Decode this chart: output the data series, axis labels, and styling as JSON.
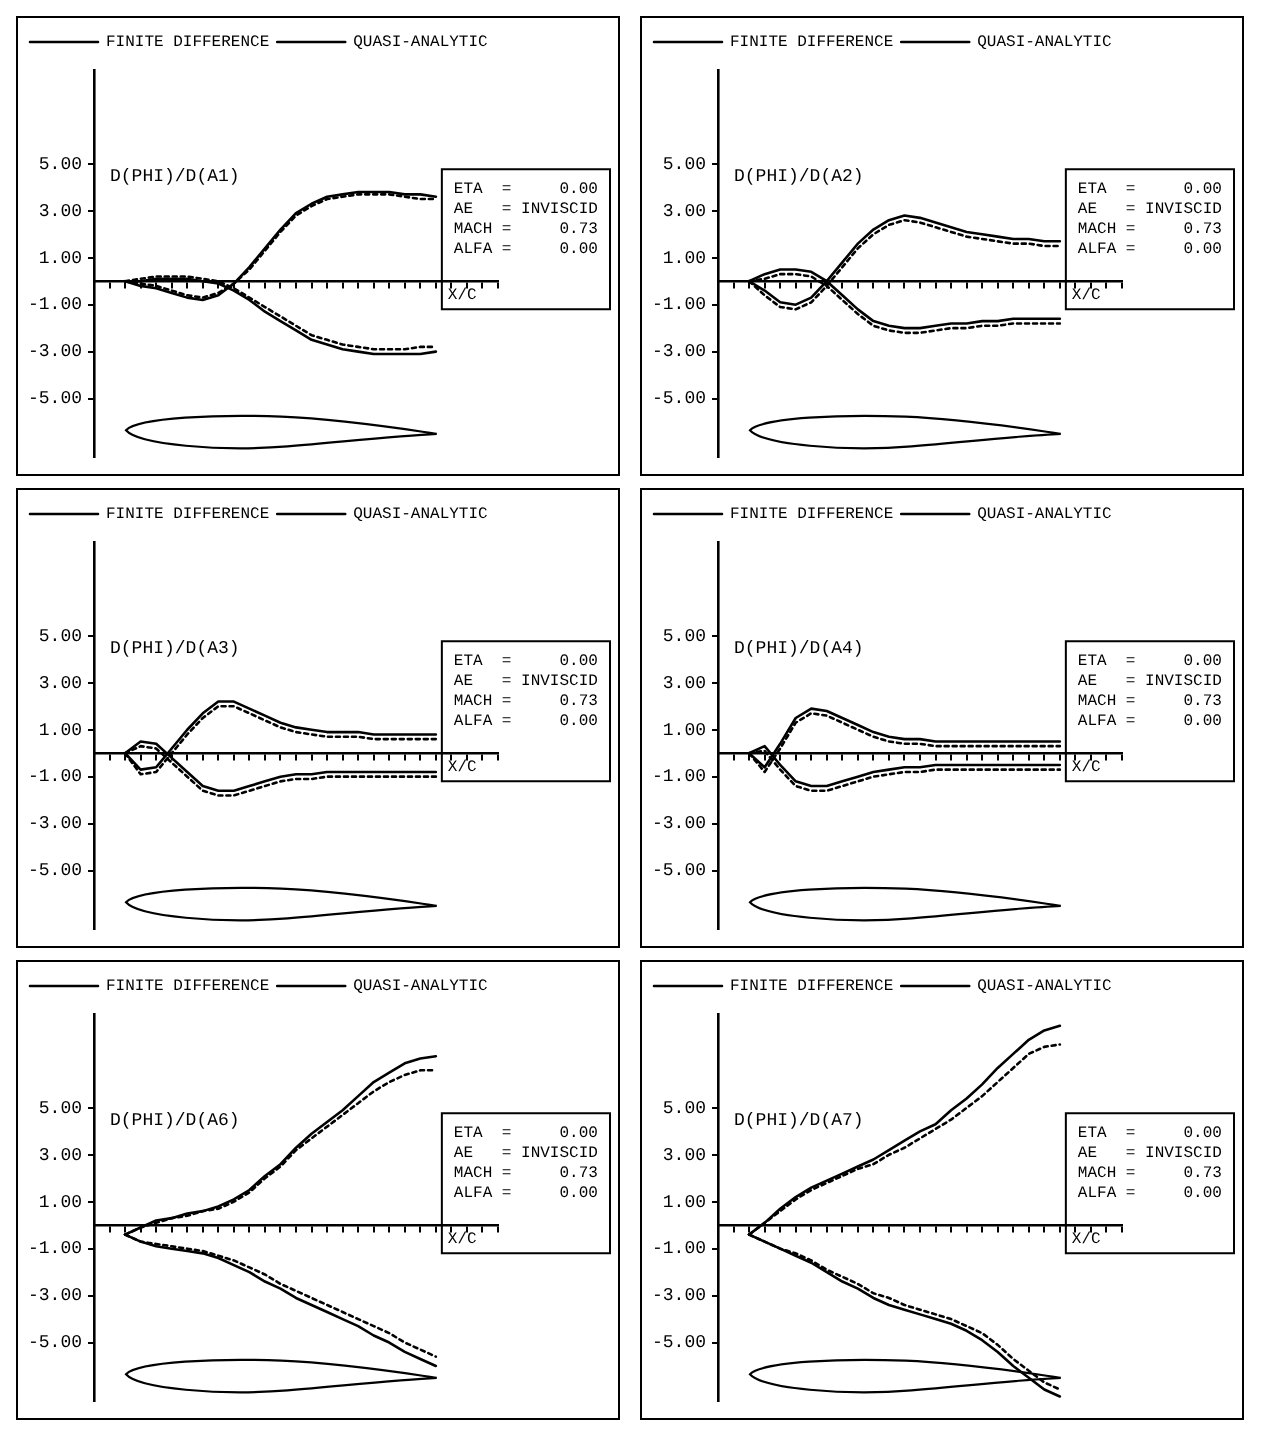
{
  "chart_data": [
    {
      "type": "line",
      "ylabel": "D(PHI)/D(A1)",
      "xlabel": "X/C",
      "legend": "top left",
      "grid": false,
      "marker": "none",
      "tick_labels": "y",
      "ylim": [
        -7.5,
        9
      ],
      "yticks": [
        {
          "value": 5,
          "label": "5.00"
        },
        {
          "value": 3,
          "label": "3.00"
        },
        {
          "value": 1,
          "label": "1.00"
        },
        {
          "value": -1,
          "label": "-1.00"
        },
        {
          "value": -3,
          "label": "-3.00"
        },
        {
          "value": -5,
          "label": "-5.00"
        }
      ],
      "annotations": [
        "ETA  =     0.00",
        "AE   = INVISCID",
        "MACH =     0.73",
        "ALFA =     0.00"
      ],
      "categories": [
        null,
        null,
        null,
        null,
        null,
        null,
        null,
        null,
        null,
        null,
        null,
        null,
        null,
        null,
        null,
        null,
        null,
        null,
        null,
        null,
        null,
        null,
        null,
        null,
        null,
        null,
        null
      ],
      "series": [
        {
          "name": "FINITE DIFFERENCE",
          "color": "#000000",
          "line_style": "solid",
          "values": [
            null,
            null,
            0,
            -0.2,
            -0.3,
            -0.5,
            -0.7,
            -0.8,
            -0.6,
            -0.1,
            0.6,
            1.4,
            2.2,
            2.9,
            3.3,
            3.6,
            3.7,
            3.8,
            3.8,
            3.8,
            3.7,
            3.7,
            3.6,
            null,
            null,
            null,
            null
          ]
        },
        {
          "name": "QUASI-ANALYTIC",
          "color": "#000000",
          "line_style": "dotted",
          "values": [
            null,
            null,
            0,
            -0.1,
            -0.2,
            -0.4,
            -0.6,
            -0.7,
            -0.5,
            -0.1,
            0.5,
            1.3,
            2.1,
            2.8,
            3.2,
            3.5,
            3.6,
            3.7,
            3.7,
            3.7,
            3.6,
            3.5,
            3.5,
            null,
            null,
            null,
            null
          ]
        },
        {
          "color": "#000000",
          "line_style": "solid",
          "values": [
            null,
            null,
            0,
            0,
            0.1,
            0.1,
            0.1,
            0,
            -0.1,
            -0.4,
            -0.8,
            -1.3,
            -1.7,
            -2.1,
            -2.5,
            -2.7,
            -2.9,
            -3,
            -3.1,
            -3.1,
            -3.1,
            -3.1,
            -3,
            null,
            null,
            null,
            null
          ]
        },
        {
          "color": "#000000",
          "line_style": "dotted",
          "values": [
            null,
            null,
            0,
            0.1,
            0.2,
            0.2,
            0.2,
            0.1,
            0,
            -0.3,
            -0.7,
            -1.1,
            -1.5,
            -1.9,
            -2.3,
            -2.5,
            -2.7,
            -2.8,
            -2.9,
            -2.9,
            -2.9,
            -2.8,
            -2.8,
            null,
            null,
            null,
            null
          ]
        }
      ]
    },
    {
      "type": "line",
      "ylabel": "D(PHI)/D(A2)",
      "xlabel": "X/C",
      "legend": "top left",
      "grid": false,
      "marker": "none",
      "tick_labels": "y",
      "ylim": [
        -7.5,
        9
      ],
      "yticks": [
        {
          "value": 5,
          "label": "5.00"
        },
        {
          "value": 3,
          "label": "3.00"
        },
        {
          "value": 1,
          "label": "1.00"
        },
        {
          "value": -1,
          "label": "-1.00"
        },
        {
          "value": -3,
          "label": "-3.00"
        },
        {
          "value": -5,
          "label": "-5.00"
        }
      ],
      "annotations": [
        "ETA  =     0.00",
        "AE   = INVISCID",
        "MACH =     0.73",
        "ALFA =     0.00"
      ],
      "categories": [
        null,
        null,
        null,
        null,
        null,
        null,
        null,
        null,
        null,
        null,
        null,
        null,
        null,
        null,
        null,
        null,
        null,
        null,
        null,
        null,
        null,
        null,
        null,
        null,
        null,
        null,
        null
      ],
      "series": [
        {
          "name": "FINITE DIFFERENCE",
          "color": "#000000",
          "line_style": "solid",
          "values": [
            null,
            null,
            0,
            -0.4,
            -0.9,
            -1,
            -0.7,
            0,
            0.8,
            1.6,
            2.2,
            2.6,
            2.8,
            2.7,
            2.5,
            2.3,
            2.1,
            2,
            1.9,
            1.8,
            1.8,
            1.7,
            1.7,
            null,
            null,
            null,
            null
          ]
        },
        {
          "name": "QUASI-ANALYTIC",
          "color": "#000000",
          "line_style": "dotted",
          "values": [
            null,
            null,
            0,
            -0.6,
            -1.1,
            -1.2,
            -0.9,
            -0.2,
            0.6,
            1.4,
            2,
            2.4,
            2.6,
            2.5,
            2.3,
            2.1,
            1.9,
            1.8,
            1.7,
            1.6,
            1.6,
            1.5,
            1.5,
            null,
            null,
            null,
            null
          ]
        },
        {
          "color": "#000000",
          "line_style": "solid",
          "values": [
            null,
            null,
            0,
            0.3,
            0.5,
            0.5,
            0.4,
            0,
            -0.6,
            -1.2,
            -1.7,
            -1.9,
            -2,
            -2,
            -1.9,
            -1.8,
            -1.8,
            -1.7,
            -1.7,
            -1.6,
            -1.6,
            -1.6,
            -1.6,
            null,
            null,
            null,
            null
          ]
        },
        {
          "color": "#000000",
          "line_style": "dotted",
          "values": [
            null,
            null,
            0,
            0.1,
            0.3,
            0.3,
            0.2,
            -0.2,
            -0.8,
            -1.4,
            -1.9,
            -2.1,
            -2.2,
            -2.2,
            -2.1,
            -2,
            -2,
            -1.9,
            -1.9,
            -1.8,
            -1.8,
            -1.8,
            -1.8,
            null,
            null,
            null,
            null
          ]
        }
      ]
    },
    {
      "type": "line",
      "ylabel": "D(PHI)/D(A3)",
      "xlabel": "X/C",
      "legend": "top left",
      "grid": false,
      "marker": "none",
      "tick_labels": "y",
      "ylim": [
        -7.5,
        9
      ],
      "yticks": [
        {
          "value": 5,
          "label": "5.00"
        },
        {
          "value": 3,
          "label": "3.00"
        },
        {
          "value": 1,
          "label": "1.00"
        },
        {
          "value": -1,
          "label": "-1.00"
        },
        {
          "value": -3,
          "label": "-3.00"
        },
        {
          "value": -5,
          "label": "-5.00"
        }
      ],
      "annotations": [
        "ETA  =     0.00",
        "AE   = INVISCID",
        "MACH =     0.73",
        "ALFA =     0.00"
      ],
      "categories": [
        null,
        null,
        null,
        null,
        null,
        null,
        null,
        null,
        null,
        null,
        null,
        null,
        null,
        null,
        null,
        null,
        null,
        null,
        null,
        null,
        null,
        null,
        null,
        null,
        null,
        null,
        null
      ],
      "series": [
        {
          "name": "FINITE DIFFERENCE",
          "color": "#000000",
          "line_style": "solid",
          "values": [
            null,
            null,
            0,
            -0.7,
            -0.6,
            0.2,
            1,
            1.7,
            2.2,
            2.2,
            1.9,
            1.6,
            1.3,
            1.1,
            1,
            0.9,
            0.9,
            0.9,
            0.8,
            0.8,
            0.8,
            0.8,
            0.8,
            null,
            null,
            null,
            null
          ]
        },
        {
          "name": "QUASI-ANALYTIC",
          "color": "#000000",
          "line_style": "dotted",
          "values": [
            null,
            null,
            0,
            -0.9,
            -0.8,
            0,
            0.8,
            1.5,
            2,
            2,
            1.7,
            1.4,
            1.1,
            0.9,
            0.8,
            0.7,
            0.7,
            0.7,
            0.6,
            0.6,
            0.6,
            0.6,
            0.6,
            null,
            null,
            null,
            null
          ]
        },
        {
          "color": "#000000",
          "line_style": "solid",
          "values": [
            null,
            null,
            0,
            0.5,
            0.4,
            -0.2,
            -0.8,
            -1.4,
            -1.6,
            -1.6,
            -1.4,
            -1.2,
            -1,
            -0.9,
            -0.9,
            -0.8,
            -0.8,
            -0.8,
            -0.8,
            -0.8,
            -0.8,
            -0.8,
            -0.8,
            null,
            null,
            null,
            null
          ]
        },
        {
          "color": "#000000",
          "line_style": "dotted",
          "values": [
            null,
            null,
            0,
            0.3,
            0.2,
            -0.4,
            -1,
            -1.6,
            -1.8,
            -1.8,
            -1.6,
            -1.4,
            -1.2,
            -1.1,
            -1.1,
            -1,
            -1,
            -1,
            -1,
            -1,
            -1,
            -1,
            -1,
            null,
            null,
            null,
            null
          ]
        }
      ]
    },
    {
      "type": "line",
      "ylabel": "D(PHI)/D(A4)",
      "xlabel": "X/C",
      "legend": "top left",
      "grid": false,
      "marker": "none",
      "tick_labels": "y",
      "ylim": [
        -7.5,
        9
      ],
      "yticks": [
        {
          "value": 5,
          "label": "5.00"
        },
        {
          "value": 3,
          "label": "3.00"
        },
        {
          "value": 1,
          "label": "1.00"
        },
        {
          "value": -1,
          "label": "-1.00"
        },
        {
          "value": -3,
          "label": "-3.00"
        },
        {
          "value": -5,
          "label": "-5.00"
        }
      ],
      "annotations": [
        "ETA  =     0.00",
        "AE   = INVISCID",
        "MACH =     0.73",
        "ALFA =     0.00"
      ],
      "categories": [
        null,
        null,
        null,
        null,
        null,
        null,
        null,
        null,
        null,
        null,
        null,
        null,
        null,
        null,
        null,
        null,
        null,
        null,
        null,
        null,
        null,
        null,
        null,
        null,
        null,
        null,
        null
      ],
      "series": [
        {
          "name": "FINITE DIFFERENCE",
          "color": "#000000",
          "line_style": "solid",
          "values": [
            null,
            null,
            0,
            -0.6,
            0.4,
            1.5,
            1.9,
            1.8,
            1.5,
            1.2,
            0.9,
            0.7,
            0.6,
            0.6,
            0.5,
            0.5,
            0.5,
            0.5,
            0.5,
            0.5,
            0.5,
            0.5,
            0.5,
            null,
            null,
            null,
            null
          ]
        },
        {
          "name": "QUASI-ANALYTIC",
          "color": "#000000",
          "line_style": "dotted",
          "values": [
            null,
            null,
            0,
            -0.8,
            0.2,
            1.3,
            1.7,
            1.6,
            1.3,
            1,
            0.7,
            0.5,
            0.4,
            0.4,
            0.3,
            0.3,
            0.3,
            0.3,
            0.3,
            0.3,
            0.3,
            0.3,
            0.3,
            null,
            null,
            null,
            null
          ]
        },
        {
          "color": "#000000",
          "line_style": "solid",
          "values": [
            null,
            null,
            0,
            0.3,
            -0.5,
            -1.2,
            -1.4,
            -1.4,
            -1.2,
            -1,
            -0.8,
            -0.7,
            -0.6,
            -0.6,
            -0.5,
            -0.5,
            -0.5,
            -0.5,
            -0.5,
            -0.5,
            -0.5,
            -0.5,
            -0.5,
            null,
            null,
            null,
            null
          ]
        },
        {
          "color": "#000000",
          "line_style": "dotted",
          "values": [
            null,
            null,
            0,
            0.1,
            -0.7,
            -1.4,
            -1.6,
            -1.6,
            -1.4,
            -1.2,
            -1,
            -0.9,
            -0.8,
            -0.8,
            -0.7,
            -0.7,
            -0.7,
            -0.7,
            -0.7,
            -0.7,
            -0.7,
            -0.7,
            -0.7,
            null,
            null,
            null,
            null
          ]
        }
      ]
    },
    {
      "type": "line",
      "ylabel": "D(PHI)/D(A6)",
      "xlabel": "X/C",
      "legend": "top left",
      "grid": false,
      "marker": "none",
      "tick_labels": "y",
      "ylim": [
        -7.5,
        9
      ],
      "yticks": [
        {
          "value": 5,
          "label": "5.00"
        },
        {
          "value": 3,
          "label": "3.00"
        },
        {
          "value": 1,
          "label": "1.00"
        },
        {
          "value": -1,
          "label": "-1.00"
        },
        {
          "value": -3,
          "label": "-3.00"
        },
        {
          "value": -5,
          "label": "-5.00"
        }
      ],
      "annotations": [
        "ETA  =     0.00",
        "AE   = INVISCID",
        "MACH =     0.73",
        "ALFA =     0.00"
      ],
      "categories": [
        null,
        null,
        null,
        null,
        null,
        null,
        null,
        null,
        null,
        null,
        null,
        null,
        null,
        null,
        null,
        null,
        null,
        null,
        null,
        null,
        null,
        null,
        null,
        null,
        null,
        null,
        null
      ],
      "series": [
        {
          "name": "FINITE DIFFERENCE",
          "color": "#000000",
          "line_style": "solid",
          "values": [
            null,
            null,
            -0.4,
            -0.1,
            0.2,
            0.3,
            0.5,
            0.6,
            0.8,
            1.1,
            1.5,
            2.1,
            2.6,
            3.3,
            3.9,
            4.4,
            4.9,
            5.5,
            6.1,
            6.5,
            6.9,
            7.1,
            7.2,
            null,
            null,
            null,
            null
          ]
        },
        {
          "name": "QUASI-ANALYTIC",
          "color": "#000000",
          "line_style": "dotted",
          "values": [
            null,
            null,
            -0.4,
            -0.1,
            0.1,
            0.3,
            0.4,
            0.6,
            0.7,
            1,
            1.4,
            2,
            2.5,
            3.2,
            3.7,
            4.2,
            4.7,
            5.2,
            5.7,
            6.1,
            6.4,
            6.6,
            6.6,
            null,
            null,
            null,
            null
          ]
        },
        {
          "color": "#000000",
          "line_style": "solid",
          "values": [
            null,
            null,
            -0.4,
            -0.7,
            -0.9,
            -1,
            -1.1,
            -1.2,
            -1.4,
            -1.7,
            -2,
            -2.4,
            -2.7,
            -3.1,
            -3.4,
            -3.7,
            -4,
            -4.3,
            -4.7,
            -5,
            -5.4,
            -5.7,
            -6,
            null,
            null,
            null,
            null
          ]
        },
        {
          "color": "#000000",
          "line_style": "dotted",
          "values": [
            null,
            null,
            -0.4,
            -0.7,
            -0.8,
            -0.9,
            -1,
            -1.1,
            -1.3,
            -1.5,
            -1.8,
            -2.1,
            -2.5,
            -2.8,
            -3.1,
            -3.4,
            -3.7,
            -4,
            -4.3,
            -4.6,
            -5,
            -5.3,
            -5.6,
            null,
            null,
            null,
            null
          ]
        }
      ]
    },
    {
      "type": "line",
      "ylabel": "D(PHI)/D(A7)",
      "xlabel": "X/C",
      "legend": "top left",
      "grid": false,
      "marker": "none",
      "tick_labels": "y",
      "ylim": [
        -7.5,
        9
      ],
      "yticks": [
        {
          "value": 5,
          "label": "5.00"
        },
        {
          "value": 3,
          "label": "3.00"
        },
        {
          "value": 1,
          "label": "1.00"
        },
        {
          "value": -1,
          "label": "-1.00"
        },
        {
          "value": -3,
          "label": "-3.00"
        },
        {
          "value": -5,
          "label": "-5.00"
        }
      ],
      "annotations": [
        "ETA  =     0.00",
        "AE   = INVISCID",
        "MACH =     0.73",
        "ALFA =     0.00"
      ],
      "categories": [
        null,
        null,
        null,
        null,
        null,
        null,
        null,
        null,
        null,
        null,
        null,
        null,
        null,
        null,
        null,
        null,
        null,
        null,
        null,
        null,
        null,
        null,
        null,
        null,
        null,
        null,
        null
      ],
      "series": [
        {
          "name": "FINITE DIFFERENCE",
          "color": "#000000",
          "line_style": "solid",
          "values": [
            null,
            null,
            -0.4,
            0.1,
            0.7,
            1.2,
            1.6,
            1.9,
            2.2,
            2.5,
            2.8,
            3.2,
            3.6,
            4,
            4.3,
            4.9,
            5.4,
            6,
            6.7,
            7.3,
            7.9,
            8.3,
            8.5,
            null,
            null,
            null,
            null
          ]
        },
        {
          "name": "QUASI-ANALYTIC",
          "color": "#000000",
          "line_style": "dotted",
          "values": [
            null,
            null,
            -0.4,
            0.1,
            0.6,
            1.1,
            1.5,
            1.8,
            2.1,
            2.4,
            2.6,
            3,
            3.3,
            3.7,
            4.1,
            4.5,
            5,
            5.5,
            6.1,
            6.7,
            7.3,
            7.6,
            7.7,
            null,
            null,
            null,
            null
          ]
        },
        {
          "color": "#000000",
          "line_style": "solid",
          "values": [
            null,
            null,
            -0.4,
            -0.7,
            -1,
            -1.3,
            -1.6,
            -2,
            -2.4,
            -2.7,
            -3.1,
            -3.4,
            -3.6,
            -3.8,
            -4,
            -4.2,
            -4.5,
            -4.9,
            -5.4,
            -6,
            -6.5,
            -7,
            -7.3,
            null,
            null,
            null,
            null
          ]
        },
        {
          "color": "#000000",
          "line_style": "dotted",
          "values": [
            null,
            null,
            -0.4,
            -0.7,
            -1,
            -1.2,
            -1.5,
            -1.9,
            -2.2,
            -2.5,
            -2.9,
            -3.1,
            -3.4,
            -3.6,
            -3.8,
            -4,
            -4.3,
            -4.6,
            -5.1,
            -5.7,
            -6.2,
            -6.7,
            -7,
            null,
            null,
            null,
            null
          ]
        }
      ]
    }
  ]
}
